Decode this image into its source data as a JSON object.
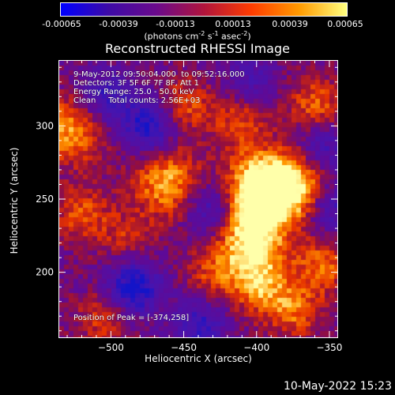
{
  "colorbar": {
    "ticks": [
      "-0.00065",
      "-0.00039",
      "-0.00013",
      "0.00013",
      "0.00039",
      "0.00065"
    ],
    "units_main": "(photons cm",
    "units_exp1": "-2",
    "units_mid1": " s",
    "units_exp2": "-1",
    "units_mid2": " asec",
    "units_exp3": "-2",
    "units_end": ")",
    "colors": [
      "#0000ff",
      "#3d0aa6",
      "#6a0a8c",
      "#b0143c",
      "#ff3c00",
      "#ff9a00",
      "#ffff80"
    ]
  },
  "info": {
    "time": "9-May-2012 09:50:04.000  to 09:52:16.000",
    "detectors": "Detectors: 3F 5F 6F 7F 8F, Att 1",
    "energy": "Energy Range: 25.0 - 50.0 keV",
    "clean": "Clean     Total counts: 2.56E+03",
    "peak": "Position of Peak = [-374,258]"
  },
  "footer": "10-May-2022 15:23",
  "chart_data": {
    "type": "heatmap",
    "title": "Reconstructed RHESSI Image",
    "xlabel": "Heliocentric X (arcsec)",
    "ylabel": "Heliocentric Y (arcsec)",
    "xlim": [
      -536,
      -344
    ],
    "ylim": [
      155,
      345
    ],
    "xticks": [
      -500,
      -450,
      -400,
      -350
    ],
    "xtick_labels": [
      "−500",
      "−450",
      "−400",
      "−350"
    ],
    "yticks": [
      200,
      250,
      300
    ],
    "ytick_labels": [
      "200",
      "250",
      "300"
    ],
    "zlim": [
      -0.00065,
      0.00065
    ],
    "peak": [
      -374,
      258
    ],
    "bright_sources": [
      {
        "x": -374,
        "y": 258,
        "level": 1.0
      },
      {
        "x": -398,
        "y": 262,
        "level": 0.9
      },
      {
        "x": -405,
        "y": 240,
        "level": 0.85
      },
      {
        "x": -402,
        "y": 215,
        "level": 0.75
      },
      {
        "x": -398,
        "y": 190,
        "level": 0.6
      },
      {
        "x": -462,
        "y": 262,
        "level": 0.8
      },
      {
        "x": -528,
        "y": 298,
        "level": 0.75
      },
      {
        "x": -520,
        "y": 240,
        "level": 0.5
      },
      {
        "x": -375,
        "y": 175,
        "level": 0.6
      },
      {
        "x": -355,
        "y": 205,
        "level": 0.6
      },
      {
        "x": -450,
        "y": 315,
        "level": 0.5
      },
      {
        "x": -412,
        "y": 305,
        "level": 0.5
      },
      {
        "x": -360,
        "y": 315,
        "level": 0.55
      },
      {
        "x": -505,
        "y": 170,
        "level": 0.45
      },
      {
        "x": -430,
        "y": 200,
        "level": 0.45
      },
      {
        "x": -490,
        "y": 225,
        "level": 0.35
      }
    ],
    "dim_regions": [
      {
        "x": -485,
        "y": 190,
        "level": -0.9
      },
      {
        "x": -475,
        "y": 300,
        "level": -0.8
      },
      {
        "x": -505,
        "y": 320,
        "level": -0.6
      },
      {
        "x": -430,
        "y": 245,
        "level": -0.7
      },
      {
        "x": -350,
        "y": 245,
        "level": -0.6
      },
      {
        "x": -440,
        "y": 165,
        "level": -0.6
      },
      {
        "x": -355,
        "y": 285,
        "level": -0.5
      },
      {
        "x": -405,
        "y": 330,
        "level": -0.4
      }
    ]
  }
}
